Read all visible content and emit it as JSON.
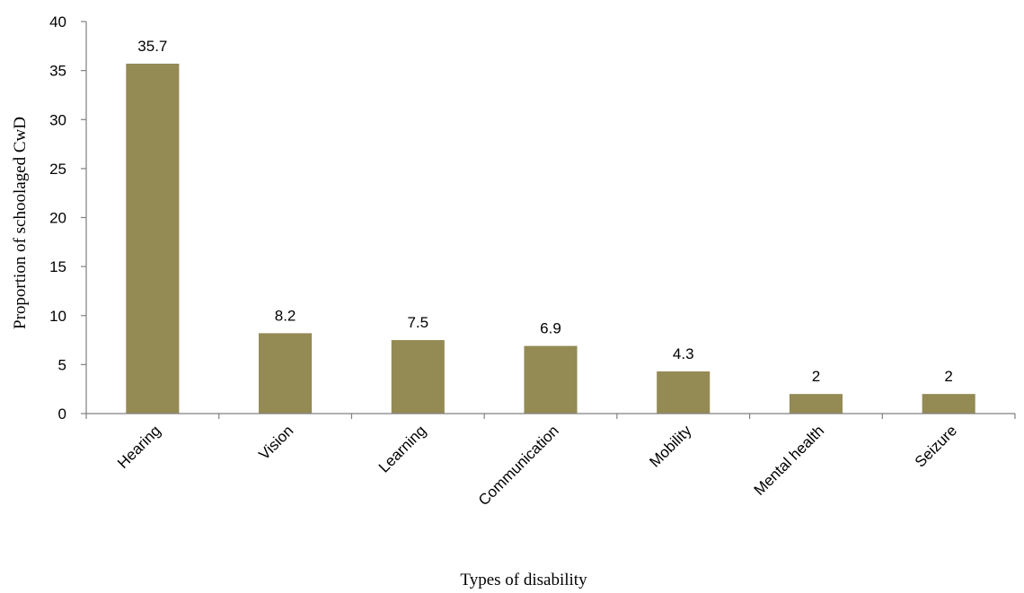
{
  "chart_data": {
    "type": "bar",
    "categories": [
      "Hearing",
      "Vision",
      "Learning",
      "Communication",
      "Mobility",
      "Mental health",
      "Seizure"
    ],
    "values": [
      35.7,
      8.2,
      7.5,
      6.9,
      4.3,
      2,
      2
    ],
    "data_labels": [
      "35.7",
      "8.2",
      "7.5",
      "6.9",
      "4.3",
      "2",
      "2"
    ],
    "xlabel": "Types of disability",
    "ylabel": "Proportion of schoolaged CwD",
    "ylim": [
      0,
      40
    ],
    "yticks": [
      0,
      5,
      10,
      15,
      20,
      25,
      30,
      35,
      40
    ],
    "grid": false,
    "legend": "none",
    "bar_color": "#948a54"
  }
}
